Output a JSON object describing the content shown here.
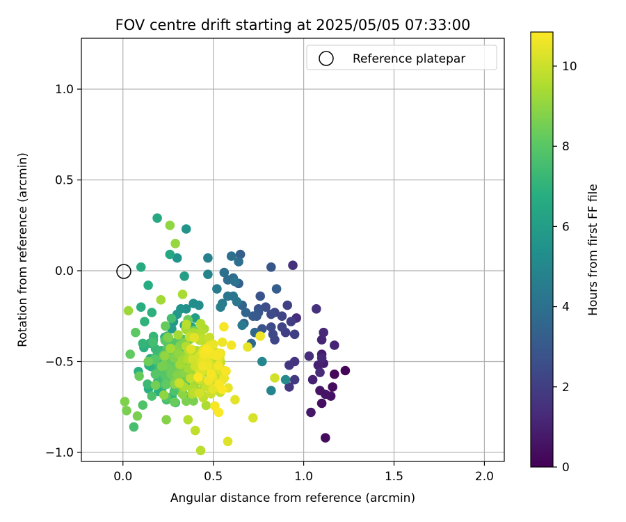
{
  "chart_data": {
    "type": "scatter",
    "title": "FOV centre drift starting at 2025/05/05 07:33:00",
    "xlabel": "Angular distance from reference (arcmin)",
    "ylabel": "Rotation from reference (arcmin)",
    "xlim": [
      -0.23,
      2.11
    ],
    "ylim": [
      -1.05,
      1.28
    ],
    "xticks": [
      0.0,
      0.5,
      1.0,
      1.5,
      2.0
    ],
    "xtick_labels": [
      "0.0",
      "0.5",
      "1.0",
      "1.5",
      "2.0"
    ],
    "yticks": [
      -1.0,
      -0.5,
      0.0,
      0.5,
      1.0
    ],
    "ytick_labels": [
      "−1.0",
      "−0.5",
      "0.0",
      "0.5",
      "1.0"
    ],
    "grid": true,
    "legend": {
      "placement": "upper right",
      "entries": [
        "Reference platepar"
      ]
    },
    "reference_point": {
      "name": "Reference platepar",
      "x": 0.0,
      "y": 0.0,
      "marker": "open-circle"
    },
    "colorbar": {
      "label": "Hours from first FF file",
      "colormap": "viridis",
      "range": [
        0,
        10.85
      ],
      "ticks": [
        0,
        2,
        4,
        6,
        8,
        10
      ],
      "tick_labels": [
        "0",
        "2",
        "4",
        "6",
        "8",
        "10"
      ]
    },
    "color_stops": [
      "#440154",
      "#472d7b",
      "#3b528b",
      "#2c728e",
      "#21918c",
      "#28ae80",
      "#5ec962",
      "#addc30",
      "#fde725"
    ],
    "points": [
      {
        "x": 1.23,
        "y": -0.55,
        "h": 0.1
      },
      {
        "x": 1.17,
        "y": -0.57,
        "h": 0.2
      },
      {
        "x": 1.12,
        "y": -0.92,
        "h": 0.3
      },
      {
        "x": 1.16,
        "y": -0.64,
        "h": 0.3
      },
      {
        "x": 1.1,
        "y": -0.73,
        "h": 0.4
      },
      {
        "x": 1.15,
        "y": -0.69,
        "h": 0.5
      },
      {
        "x": 1.12,
        "y": -0.68,
        "h": 0.6
      },
      {
        "x": 1.09,
        "y": -0.66,
        "h": 0.6
      },
      {
        "x": 1.04,
        "y": -0.78,
        "h": 0.7
      },
      {
        "x": 1.1,
        "y": -0.46,
        "h": 0.8
      },
      {
        "x": 1.11,
        "y": -0.51,
        "h": 0.9
      },
      {
        "x": 1.08,
        "y": -0.52,
        "h": 1.0
      },
      {
        "x": 1.05,
        "y": -0.6,
        "h": 1.0
      },
      {
        "x": 1.17,
        "y": -0.41,
        "h": 1.1
      },
      {
        "x": 1.1,
        "y": -0.38,
        "h": 1.1
      },
      {
        "x": 1.11,
        "y": -0.34,
        "h": 1.2
      },
      {
        "x": 1.1,
        "y": -0.48,
        "h": 1.2
      },
      {
        "x": 1.09,
        "y": -0.56,
        "h": 1.3
      },
      {
        "x": 1.03,
        "y": -0.47,
        "h": 1.4
      },
      {
        "x": 0.96,
        "y": -0.26,
        "h": 1.4
      },
      {
        "x": 1.07,
        "y": -0.21,
        "h": 1.5
      },
      {
        "x": 0.94,
        "y": 0.03,
        "h": 1.5
      },
      {
        "x": 0.95,
        "y": -0.5,
        "h": 1.6
      },
      {
        "x": 0.92,
        "y": -0.52,
        "h": 1.7
      },
      {
        "x": 0.92,
        "y": -0.64,
        "h": 1.7
      },
      {
        "x": 0.95,
        "y": -0.6,
        "h": 1.8
      },
      {
        "x": 0.93,
        "y": -0.28,
        "h": 1.9
      },
      {
        "x": 0.95,
        "y": -0.35,
        "h": 2.0
      },
      {
        "x": 0.9,
        "y": -0.34,
        "h": 2.0
      },
      {
        "x": 0.91,
        "y": -0.19,
        "h": 2.1
      },
      {
        "x": 0.88,
        "y": -0.25,
        "h": 2.2
      },
      {
        "x": 0.88,
        "y": -0.31,
        "h": 2.2
      },
      {
        "x": 0.84,
        "y": -0.23,
        "h": 2.3
      },
      {
        "x": 0.84,
        "y": -0.38,
        "h": 2.3
      },
      {
        "x": 0.83,
        "y": -0.35,
        "h": 2.4
      },
      {
        "x": 0.82,
        "y": -0.31,
        "h": 2.5
      },
      {
        "x": 0.82,
        "y": -0.24,
        "h": 2.5
      },
      {
        "x": 0.79,
        "y": -0.2,
        "h": 2.6
      },
      {
        "x": 0.75,
        "y": -0.21,
        "h": 2.7
      },
      {
        "x": 0.77,
        "y": -0.32,
        "h": 2.8
      },
      {
        "x": 0.76,
        "y": -0.14,
        "h": 2.8
      },
      {
        "x": 0.82,
        "y": 0.02,
        "h": 2.9
      },
      {
        "x": 0.74,
        "y": -0.25,
        "h": 3.0
      },
      {
        "x": 0.75,
        "y": -0.23,
        "h": 3.0
      },
      {
        "x": 0.72,
        "y": -0.25,
        "h": 3.1
      },
      {
        "x": 0.85,
        "y": -0.1,
        "h": 3.2
      },
      {
        "x": 0.65,
        "y": 0.09,
        "h": 3.3
      },
      {
        "x": 0.64,
        "y": -0.07,
        "h": 3.3
      },
      {
        "x": 0.66,
        "y": -0.19,
        "h": 3.4
      },
      {
        "x": 0.68,
        "y": -0.23,
        "h": 3.5
      },
      {
        "x": 0.67,
        "y": -0.29,
        "h": 3.5
      },
      {
        "x": 0.73,
        "y": -0.34,
        "h": 3.6
      },
      {
        "x": 0.71,
        "y": -0.4,
        "h": 3.7
      },
      {
        "x": 0.58,
        "y": -0.05,
        "h": 3.8
      },
      {
        "x": 0.61,
        "y": -0.04,
        "h": 3.8
      },
      {
        "x": 0.64,
        "y": 0.05,
        "h": 3.9
      },
      {
        "x": 0.6,
        "y": 0.08,
        "h": 4.0
      },
      {
        "x": 0.56,
        "y": -0.01,
        "h": 4.0
      },
      {
        "x": 0.62,
        "y": -0.06,
        "h": 4.1
      },
      {
        "x": 0.58,
        "y": -0.14,
        "h": 4.2
      },
      {
        "x": 0.61,
        "y": -0.14,
        "h": 4.2
      },
      {
        "x": 0.63,
        "y": -0.17,
        "h": 4.3
      },
      {
        "x": 0.66,
        "y": -0.3,
        "h": 4.4
      },
      {
        "x": 0.52,
        "y": -0.1,
        "h": 4.5
      },
      {
        "x": 0.55,
        "y": -0.18,
        "h": 4.5
      },
      {
        "x": 0.54,
        "y": -0.2,
        "h": 4.6
      },
      {
        "x": 0.47,
        "y": 0.07,
        "h": 4.7
      },
      {
        "x": 0.47,
        "y": -0.02,
        "h": 4.8
      },
      {
        "x": 0.82,
        "y": -0.66,
        "h": 4.9
      },
      {
        "x": 0.77,
        "y": -0.5,
        "h": 5.0
      },
      {
        "x": 0.9,
        "y": -0.6,
        "h": 5.1
      },
      {
        "x": 0.42,
        "y": -0.19,
        "h": 5.2
      },
      {
        "x": 0.39,
        "y": -0.18,
        "h": 5.3
      },
      {
        "x": 0.35,
        "y": -0.21,
        "h": 5.4
      },
      {
        "x": 0.32,
        "y": -0.21,
        "h": 5.5
      },
      {
        "x": 0.3,
        "y": 0.07,
        "h": 5.5
      },
      {
        "x": 0.35,
        "y": 0.23,
        "h": 5.6
      },
      {
        "x": 0.3,
        "y": -0.24,
        "h": 5.7
      },
      {
        "x": 0.28,
        "y": -0.28,
        "h": 5.8
      },
      {
        "x": 0.27,
        "y": -0.32,
        "h": 5.9
      },
      {
        "x": 0.4,
        "y": -0.26,
        "h": 6.0
      },
      {
        "x": 0.34,
        "y": -0.03,
        "h": 6.1
      },
      {
        "x": 0.34,
        "y": -0.3,
        "h": 6.2
      },
      {
        "x": 0.38,
        "y": -0.31,
        "h": 6.3
      },
      {
        "x": 0.26,
        "y": 0.09,
        "h": 6.4
      },
      {
        "x": 0.19,
        "y": 0.29,
        "h": 6.5
      },
      {
        "x": 0.1,
        "y": 0.02,
        "h": 6.6
      },
      {
        "x": 0.14,
        "y": -0.08,
        "h": 6.7
      },
      {
        "x": 0.1,
        "y": -0.2,
        "h": 6.8
      },
      {
        "x": 0.16,
        "y": -0.23,
        "h": 6.9
      },
      {
        "x": 0.12,
        "y": -0.28,
        "h": 7.0
      },
      {
        "x": 0.11,
        "y": -0.4,
        "h": 7.1
      },
      {
        "x": 0.18,
        "y": -0.43,
        "h": 7.2
      },
      {
        "x": 0.23,
        "y": -0.48,
        "h": 7.3
      },
      {
        "x": 0.22,
        "y": -0.58,
        "h": 7.4
      },
      {
        "x": 0.28,
        "y": -0.62,
        "h": 7.5
      },
      {
        "x": 0.06,
        "y": -0.86,
        "h": 7.6
      },
      {
        "x": 0.16,
        "y": -0.69,
        "h": 7.7
      },
      {
        "x": 0.11,
        "y": -0.74,
        "h": 7.8
      },
      {
        "x": 0.3,
        "y": -0.56,
        "h": 7.9
      },
      {
        "x": 0.25,
        "y": -0.42,
        "h": 8.0
      },
      {
        "x": 0.07,
        "y": -0.34,
        "h": 8.1
      },
      {
        "x": 0.04,
        "y": -0.46,
        "h": 8.2
      },
      {
        "x": 0.09,
        "y": -0.58,
        "h": 8.3
      },
      {
        "x": 0.14,
        "y": -0.5,
        "h": 8.4
      },
      {
        "x": 0.18,
        "y": -0.63,
        "h": 8.5
      },
      {
        "x": 0.08,
        "y": -0.8,
        "h": 8.6
      },
      {
        "x": 0.02,
        "y": -0.77,
        "h": 8.6
      },
      {
        "x": 0.01,
        "y": -0.72,
        "h": 8.7
      },
      {
        "x": 0.24,
        "y": -0.82,
        "h": 8.8
      },
      {
        "x": 0.33,
        "y": -0.68,
        "h": 8.9
      },
      {
        "x": 0.31,
        "y": -0.46,
        "h": 9.0
      },
      {
        "x": 0.26,
        "y": 0.25,
        "h": 9.0
      },
      {
        "x": 0.29,
        "y": 0.15,
        "h": 9.1
      },
      {
        "x": 0.03,
        "y": -0.22,
        "h": 9.2
      },
      {
        "x": 0.21,
        "y": -0.16,
        "h": 9.3
      },
      {
        "x": 0.33,
        "y": -0.13,
        "h": 9.4
      },
      {
        "x": 0.45,
        "y": -0.32,
        "h": 9.5
      },
      {
        "x": 0.36,
        "y": -0.82,
        "h": 9.6
      },
      {
        "x": 0.43,
        "y": -0.99,
        "h": 9.7
      },
      {
        "x": 0.4,
        "y": -0.88,
        "h": 9.8
      },
      {
        "x": 0.49,
        "y": -0.4,
        "h": 9.9
      },
      {
        "x": 0.56,
        "y": -0.55,
        "h": 10.0
      },
      {
        "x": 0.84,
        "y": -0.59,
        "h": 10.1
      },
      {
        "x": 0.72,
        "y": -0.81,
        "h": 10.2
      },
      {
        "x": 0.58,
        "y": -0.94,
        "h": 10.3
      },
      {
        "x": 0.62,
        "y": -0.71,
        "h": 10.4
      },
      {
        "x": 0.69,
        "y": -0.42,
        "h": 10.5
      },
      {
        "x": 0.76,
        "y": -0.36,
        "h": 10.6
      },
      {
        "x": 0.6,
        "y": -0.41,
        "h": 10.7
      },
      {
        "x": 0.53,
        "y": -0.78,
        "h": 10.8
      }
    ],
    "cluster": {
      "count": 300,
      "x_range": [
        0.03,
        0.72
      ],
      "y_range": [
        -0.92,
        -0.12
      ],
      "h_range": [
        6.8,
        10.85
      ]
    }
  }
}
